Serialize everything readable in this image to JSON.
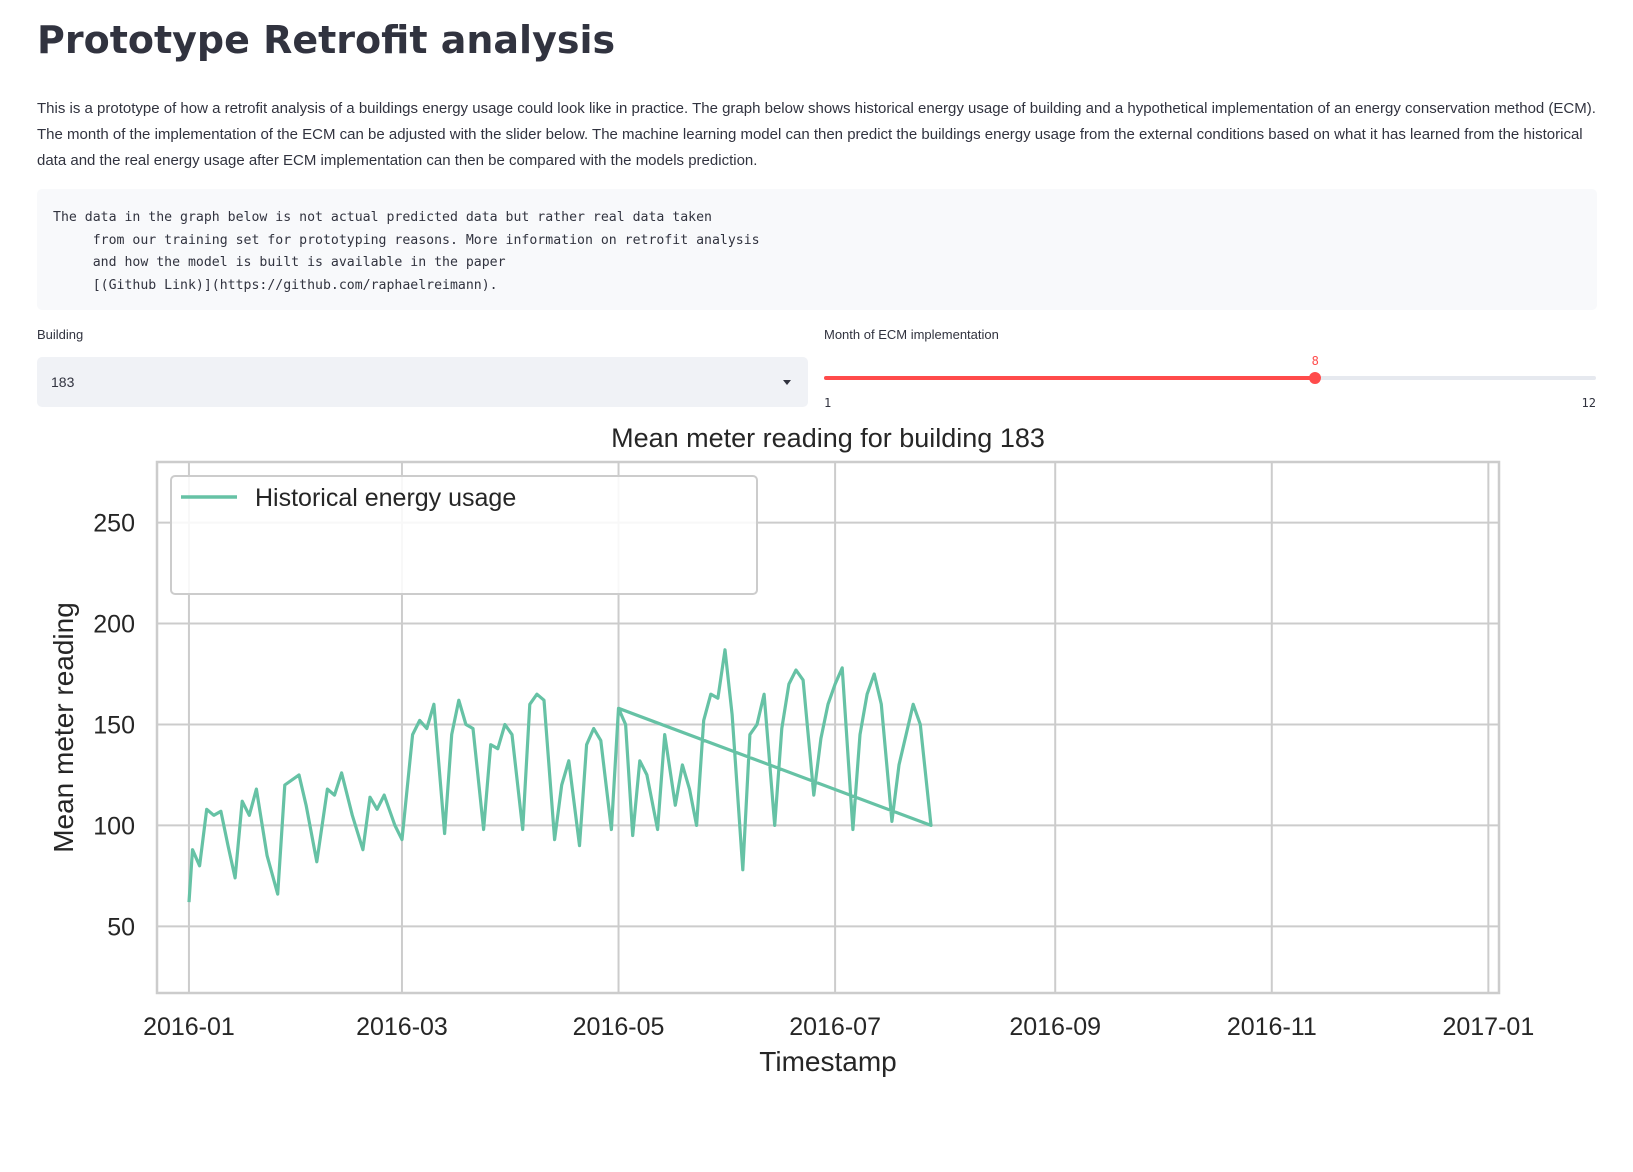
{
  "page": {
    "title": "Prototype Retrofit analysis",
    "intro": "This is a prototype of how a retrofit analysis of a buildings energy usage could look like in practice. The graph below shows historical energy usage of building and a hypothetical implementation of an energy conservation method (ECM). The month of the implementation of the ECM can be adjusted with the slider below. The machine learning model can then predict the buildings energy usage from the external conditions based on what it has learned from the historical data and the real energy usage after ECM implementation can then be compared with the models prediction.",
    "code_note": "The data in the graph below is not actual predicted data but rather real data taken\n     from our training set for prototyping reasons. More information on retrofit analysis\n     and how the model is built is available in the paper\n     [(Github Link)](https://github.com/raphaelreimann)."
  },
  "controls": {
    "building_label": "Building",
    "building_value": "183",
    "month_label": "Month of ECM implementation",
    "month_value": "8",
    "month_min": "1",
    "month_max": "12"
  },
  "colors": {
    "historical": "#66c2a5",
    "predicted": "#fc8d62",
    "after": "#8da0cb",
    "slider_accent": "#ff4b4b"
  },
  "chart_data": {
    "type": "line",
    "title": "Mean meter reading for building 183",
    "xlabel": "Timestamp",
    "ylabel": "Mean meter reading",
    "x_range": [
      "2015-12-23",
      "2017-01-04"
    ],
    "ylim": [
      17,
      280
    ],
    "x_ticks": [
      "2016-01",
      "2016-03",
      "2016-05",
      "2016-07",
      "2016-09",
      "2016-11",
      "2017-01"
    ],
    "y_ticks": [
      50,
      100,
      150,
      200,
      250
    ],
    "grid": true,
    "legend_position": "top-left",
    "series": [
      {
        "name": "Historical energy usage",
        "style": "solid",
        "points": [
          [
            "2016-01-01",
            62
          ],
          [
            "2016-01-02",
            88
          ],
          [
            "2016-01-04",
            80
          ],
          [
            "2016-01-06",
            108
          ],
          [
            "2016-01-08",
            105
          ],
          [
            "2016-01-10",
            107
          ],
          [
            "2016-01-12",
            90
          ],
          [
            "2016-01-14",
            74
          ],
          [
            "2016-01-16",
            112
          ],
          [
            "2016-01-18",
            105
          ],
          [
            "2016-01-20",
            118
          ],
          [
            "2016-01-23",
            85
          ],
          [
            "2016-01-26",
            66
          ],
          [
            "2016-01-28",
            120
          ],
          [
            "2016-02-01",
            125
          ],
          [
            "2016-02-03",
            110
          ],
          [
            "2016-02-06",
            82
          ],
          [
            "2016-02-09",
            118
          ],
          [
            "2016-02-11",
            115
          ],
          [
            "2016-02-13",
            126
          ],
          [
            "2016-02-16",
            105
          ],
          [
            "2016-02-19",
            88
          ],
          [
            "2016-02-21",
            114
          ],
          [
            "2016-02-23",
            108
          ],
          [
            "2016-02-25",
            115
          ],
          [
            "2016-02-28",
            100
          ],
          [
            "2016-03-01",
            93
          ],
          [
            "2016-03-04",
            145
          ],
          [
            "2016-03-06",
            152
          ],
          [
            "2016-03-08",
            148
          ],
          [
            "2016-03-10",
            160
          ],
          [
            "2016-03-13",
            96
          ],
          [
            "2016-03-15",
            145
          ],
          [
            "2016-03-17",
            162
          ],
          [
            "2016-03-19",
            150
          ],
          [
            "2016-03-21",
            148
          ],
          [
            "2016-03-24",
            98
          ],
          [
            "2016-03-26",
            140
          ],
          [
            "2016-03-28",
            138
          ],
          [
            "2016-03-30",
            150
          ],
          [
            "2016-04-01",
            145
          ],
          [
            "2016-04-04",
            98
          ],
          [
            "2016-04-06",
            160
          ],
          [
            "2016-04-08",
            165
          ],
          [
            "2016-04-10",
            162
          ],
          [
            "2016-04-13",
            93
          ],
          [
            "2016-04-15",
            120
          ],
          [
            "2016-04-17",
            132
          ],
          [
            "2016-04-20",
            90
          ],
          [
            "2016-04-22",
            140
          ],
          [
            "2016-04-24",
            148
          ],
          [
            "2016-04-26",
            142
          ],
          [
            "2016-04-29",
            98
          ],
          [
            "2016-05-01",
            158
          ],
          [
            "2016-05-03",
            150
          ],
          [
            "2016-05-05",
            95
          ],
          [
            "2016-05-07",
            132
          ],
          [
            "2016-05-09",
            125
          ],
          [
            "2016-05-12",
            98
          ],
          [
            "2016-05-14",
            145
          ],
          [
            "2016-05-17",
            110
          ],
          [
            "2016-05-19",
            130
          ],
          [
            "2016-05-21",
            118
          ],
          [
            "2016-05-23",
            100
          ],
          [
            "2016-05-25",
            152
          ],
          [
            "2016-05-27",
            165
          ],
          [
            "2016-05-29",
            163
          ],
          [
            "2016-05-31",
            187
          ],
          [
            "2016-06-02",
            155
          ],
          [
            "2016-06-05",
            78
          ],
          [
            "2016-06-07",
            145
          ],
          [
            "2016-06-09",
            150
          ],
          [
            "2016-06-11",
            165
          ],
          [
            "2016-06-14",
            100
          ],
          [
            "2016-06-16",
            148
          ],
          [
            "2016-06-18",
            170
          ],
          [
            "2016-06-20",
            177
          ],
          [
            "2016-06-22",
            172
          ],
          [
            "2016-06-25",
            115
          ],
          [
            "2016-06-27",
            143
          ],
          [
            "2016-06-29",
            160
          ],
          [
            "2016-07-01",
            170
          ],
          [
            "2016-07-03",
            178
          ],
          [
            "2016-07-06",
            98
          ],
          [
            "2016-07-08",
            145
          ],
          [
            "2016-07-10",
            165
          ],
          [
            "2016-07-12",
            175
          ],
          [
            "2016-07-14",
            160
          ],
          [
            "2016-07-17",
            102
          ],
          [
            "2016-07-19",
            130
          ],
          [
            "2016-07-21",
            145
          ],
          [
            "2016-07-23",
            160
          ],
          [
            "2016-07-25",
            150
          ],
          [
            "2016-07-28",
            100
          ],
          [
            "2016-05-01",
            158
          ]
        ]
      }
    ]
  }
}
